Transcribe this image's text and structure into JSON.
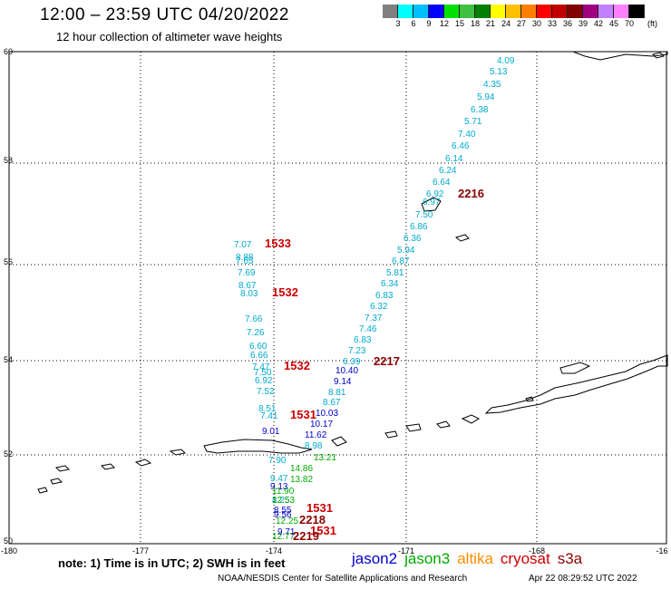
{
  "header": {
    "title": "12:00 – 23:59 UTC 04/20/2022",
    "subtitle": "12 hour collection of altimeter wave heights"
  },
  "colorbar": {
    "colors": [
      "#808080",
      "#00ffff",
      "#00bfff",
      "#0000ff",
      "#00e000",
      "#40c040",
      "#008000",
      "#ffff00",
      "#ffc000",
      "#ff8000",
      "#ff0000",
      "#c00000",
      "#800000",
      "#a00080",
      "#c080ff",
      "#ff80ff",
      "#000000"
    ],
    "labels": [
      "3",
      "6",
      "9",
      "12",
      "15",
      "18",
      "21",
      "24",
      "27",
      "30",
      "33",
      "36",
      "39",
      "42",
      "45",
      "70"
    ],
    "unit": "(ft)"
  },
  "map": {
    "lon_labels": [
      "-180",
      "-177",
      "-174",
      "-171",
      "-168",
      "-16"
    ],
    "lat_labels": [
      "60",
      "58",
      "56",
      "54",
      "52",
      "50"
    ],
    "satellite_colors": {
      "jason2": "#0000cc",
      "jason3": "#00aa00",
      "altika": "#ff8c00",
      "cryosat": "#cc0000",
      "s3a": "#8b0000",
      "alt": "#00aacc"
    },
    "track_labels": [
      {
        "text": "4.09",
        "color": "alt"
      },
      {
        "text": "5.13",
        "color": "alt"
      },
      {
        "text": "4.35",
        "color": "alt"
      },
      {
        "text": "5.94",
        "color": "alt"
      },
      {
        "text": "6.38",
        "color": "alt"
      },
      {
        "text": "5.71",
        "color": "alt"
      },
      {
        "text": "7.40",
        "color": "alt"
      },
      {
        "text": "6.46",
        "color": "alt"
      },
      {
        "text": "6.14",
        "color": "alt"
      },
      {
        "text": "6.24",
        "color": "alt"
      },
      {
        "text": "6.64",
        "color": "alt"
      },
      {
        "text": "6.92",
        "color": "alt"
      },
      {
        "text": "6.97",
        "color": "alt"
      },
      {
        "text": "7.50",
        "color": "alt"
      },
      {
        "text": "6.86",
        "color": "alt"
      },
      {
        "text": "6.36",
        "color": "alt"
      },
      {
        "text": "5.94",
        "color": "alt"
      },
      {
        "text": "6.87",
        "color": "alt"
      },
      {
        "text": "5.81",
        "color": "alt"
      },
      {
        "text": "6.34",
        "color": "alt"
      },
      {
        "text": "6.83",
        "color": "alt"
      },
      {
        "text": "6.32",
        "color": "alt"
      },
      {
        "text": "7.37",
        "color": "alt"
      },
      {
        "text": "7.46",
        "color": "alt"
      },
      {
        "text": "6.83",
        "color": "alt"
      },
      {
        "text": "7.23",
        "color": "alt"
      },
      {
        "text": "6.39",
        "color": "alt"
      },
      {
        "text": "2216",
        "color": "s3a",
        "big": true
      },
      {
        "text": "2217",
        "color": "s3a",
        "big": true
      },
      {
        "text": "10.40",
        "color": "jason2"
      },
      {
        "text": "9.14",
        "color": "jason2"
      },
      {
        "text": "8.81",
        "color": "alt"
      },
      {
        "text": "8.67",
        "color": "alt"
      },
      {
        "text": "10.03",
        "color": "jason2"
      },
      {
        "text": "10.17",
        "color": "jason2"
      },
      {
        "text": "11.62",
        "color": "jason2"
      },
      {
        "text": "8.98",
        "color": "alt"
      },
      {
        "text": "7.07",
        "color": "alt"
      },
      {
        "text": "8.88",
        "color": "alt"
      },
      {
        "text": "7.65",
        "color": "alt"
      },
      {
        "text": "7.69",
        "color": "alt"
      },
      {
        "text": "8.67",
        "color": "alt"
      },
      {
        "text": "8.03",
        "color": "alt"
      },
      {
        "text": "7.66",
        "color": "alt"
      },
      {
        "text": "7.26",
        "color": "alt"
      },
      {
        "text": "6.60",
        "color": "alt"
      },
      {
        "text": "6.66",
        "color": "alt"
      },
      {
        "text": "7.47",
        "color": "alt"
      },
      {
        "text": "7.50",
        "color": "alt"
      },
      {
        "text": "6.92",
        "color": "alt"
      },
      {
        "text": "7.52",
        "color": "alt"
      },
      {
        "text": "8.51",
        "color": "alt"
      },
      {
        "text": "7.41",
        "color": "alt"
      },
      {
        "text": "9.01",
        "color": "jason2"
      },
      {
        "text": "1533",
        "color": "cryosat",
        "big": true
      },
      {
        "text": "1532",
        "color": "cryosat",
        "big": true
      },
      {
        "text": "1532",
        "color": "cryosat",
        "big": true
      },
      {
        "text": "1531",
        "color": "cryosat",
        "big": true
      },
      {
        "text": "7.90",
        "color": "alt"
      },
      {
        "text": "13.21",
        "color": "jason3"
      },
      {
        "text": "14.86",
        "color": "jason3"
      },
      {
        "text": "13.82",
        "color": "jason3"
      },
      {
        "text": "9.47",
        "color": "alt"
      },
      {
        "text": "9.13",
        "color": "jason2"
      },
      {
        "text": "11.90",
        "color": "jason3"
      },
      {
        "text": "8.25",
        "color": "alt"
      },
      {
        "text": "12.53",
        "color": "jason3"
      },
      {
        "text": "8.55",
        "color": "jason2"
      },
      {
        "text": "9.56",
        "color": "jason2"
      },
      {
        "text": "12.25",
        "color": "jason3"
      },
      {
        "text": "12.77",
        "color": "jason3"
      },
      {
        "text": "9.71",
        "color": "jason2"
      },
      {
        "text": "1531",
        "color": "cryosat",
        "big": true
      },
      {
        "text": "2218",
        "color": "s3a",
        "big": true
      },
      {
        "text": "1531",
        "color": "cryosat",
        "big": true
      },
      {
        "text": "2219",
        "color": "s3a",
        "big": true
      }
    ]
  },
  "footer": {
    "note": "note:  1) Time is in UTC;  2) SWH is in feet",
    "legend": [
      {
        "label": "jason2",
        "color": "#0000cc"
      },
      {
        "label": "jason3",
        "color": "#00aa00"
      },
      {
        "label": "altika",
        "color": "#ff8c00"
      },
      {
        "label": "cryosat",
        "color": "#cc0000"
      },
      {
        "label": "s3a",
        "color": "#8b0000"
      }
    ],
    "credit": "NOAA/NESDIS Center for Satellite Applications and Research",
    "timestamp": "Apr 22 08:29:52 UTC 2022"
  }
}
